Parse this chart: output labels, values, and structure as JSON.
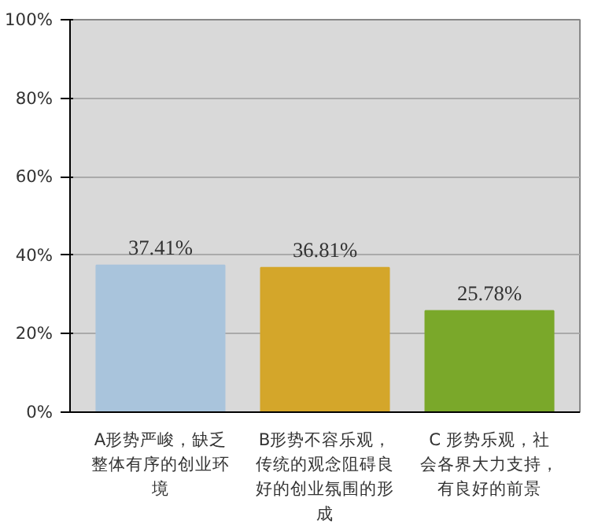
{
  "chart_data": {
    "type": "bar",
    "categories": [
      "A形势严峻，缺乏整体有序的创业环境",
      "B形势不容乐观，传统的观念阻碍良好的创业氛围的形成",
      "C 形势乐观，社会各界大力支持，有良好的前景"
    ],
    "values": [
      37.41,
      36.81,
      25.78
    ],
    "value_labels": [
      "37.41%",
      "36.81%",
      "25.78%"
    ],
    "colors": [
      "#a9c4dc",
      "#d4a62a",
      "#7aa82a"
    ],
    "ylim": [
      0,
      100
    ],
    "yticks": [
      {
        "value": 0,
        "label": "0%"
      },
      {
        "value": 20,
        "label": "20%"
      },
      {
        "value": 40,
        "label": "40%"
      },
      {
        "value": 60,
        "label": "60%"
      },
      {
        "value": 80,
        "label": "80%"
      },
      {
        "value": 100,
        "label": "100%"
      }
    ],
    "grid": "y"
  }
}
